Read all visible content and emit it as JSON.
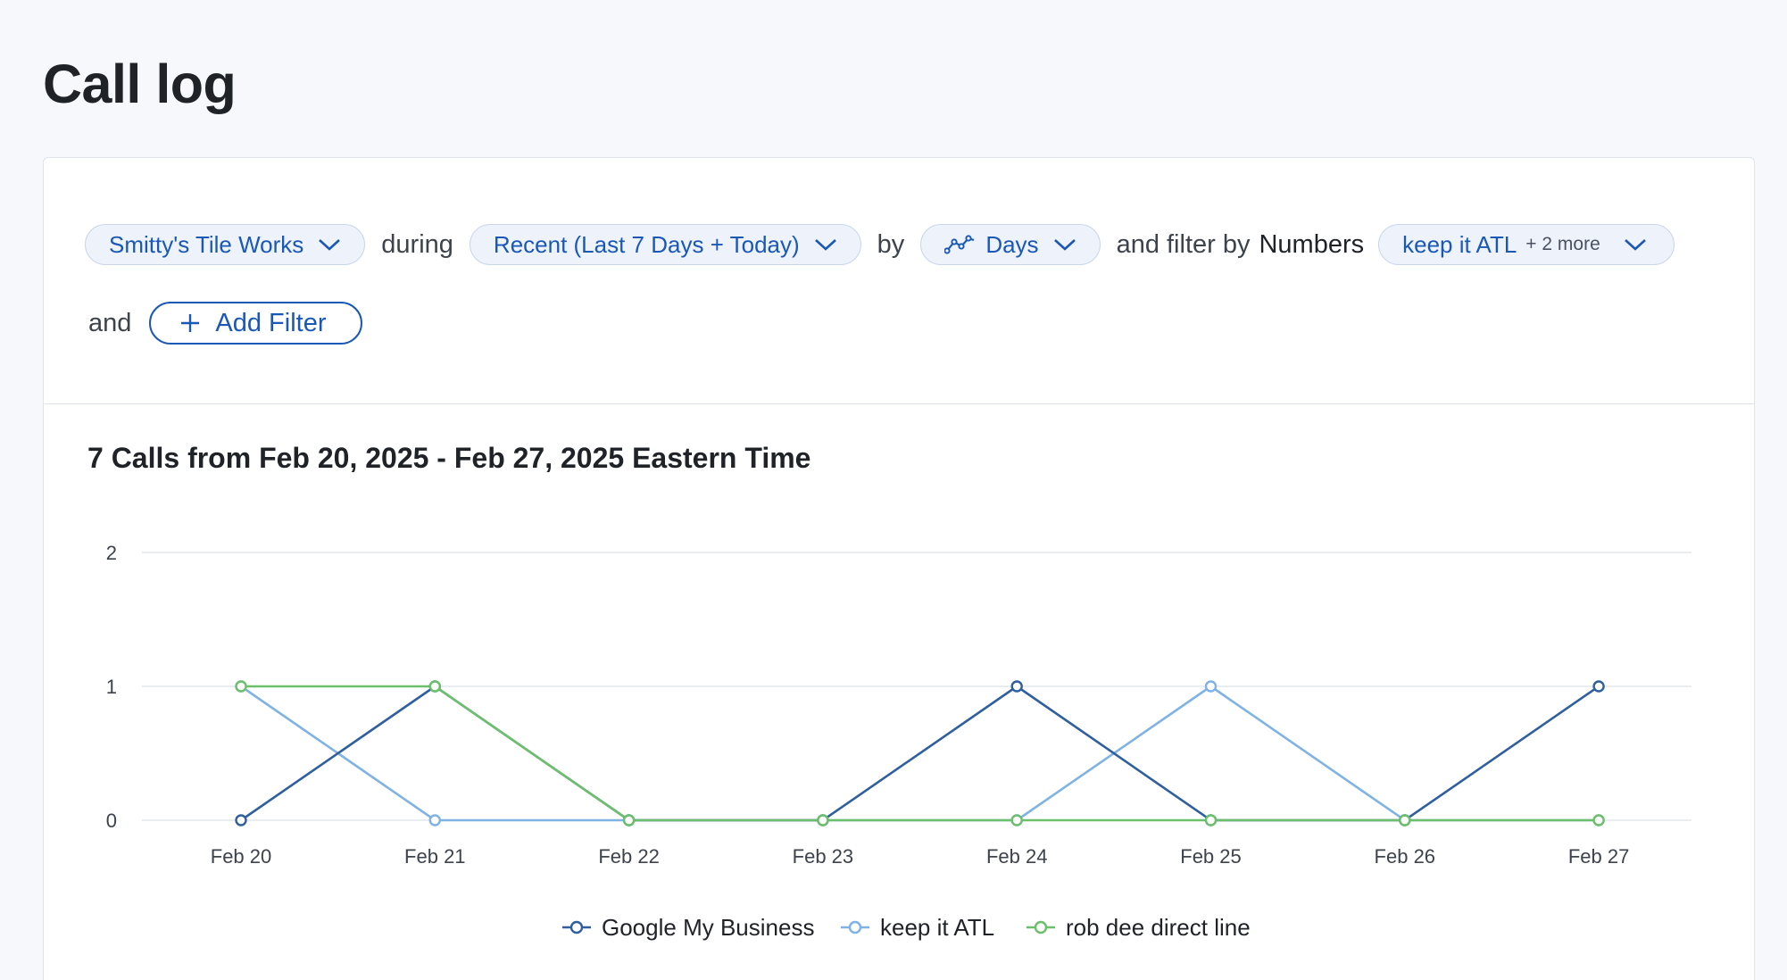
{
  "page": {
    "title": "Call log"
  },
  "filters": {
    "account": "Smitty's Tile Works",
    "during_label": "during",
    "period": "Recent (Last 7 Days + Today)",
    "by_label": "by",
    "granularity": "Days",
    "and_filter_by_label": "and filter by",
    "numbers_label": "Numbers",
    "numbers_value": "keep it ATL",
    "numbers_more": "+ 2 more",
    "and_label": "and",
    "add_filter_label": "Add Filter"
  },
  "chart": {
    "heading": "7 Calls from Feb 20, 2025 - Feb 27, 2025 Eastern Time"
  },
  "colors": {
    "accent": "#1a58b5",
    "google": "#2f5f9e",
    "keep": "#7fb2e5",
    "rob": "#6cbf6b",
    "grid": "#e4e7ec"
  },
  "chart_data": {
    "type": "line",
    "categories": [
      "Feb 20",
      "Feb 21",
      "Feb 22",
      "Feb 23",
      "Feb 24",
      "Feb 25",
      "Feb 26",
      "Feb 27"
    ],
    "ylim": [
      0,
      2
    ],
    "yticks": [
      0,
      1,
      2
    ],
    "grid": true,
    "legend": "bottom",
    "series": [
      {
        "name": "Google My Business",
        "values": [
          0,
          1,
          0,
          0,
          1,
          0,
          0,
          1
        ],
        "color": "#2f5f9e"
      },
      {
        "name": "keep it ATL",
        "values": [
          1,
          0,
          0,
          0,
          0,
          1,
          0,
          0
        ],
        "color": "#7fb2e5"
      },
      {
        "name": "rob dee direct line",
        "values": [
          1,
          1,
          0,
          0,
          0,
          0,
          0,
          0
        ],
        "color": "#6cbf6b"
      }
    ]
  }
}
